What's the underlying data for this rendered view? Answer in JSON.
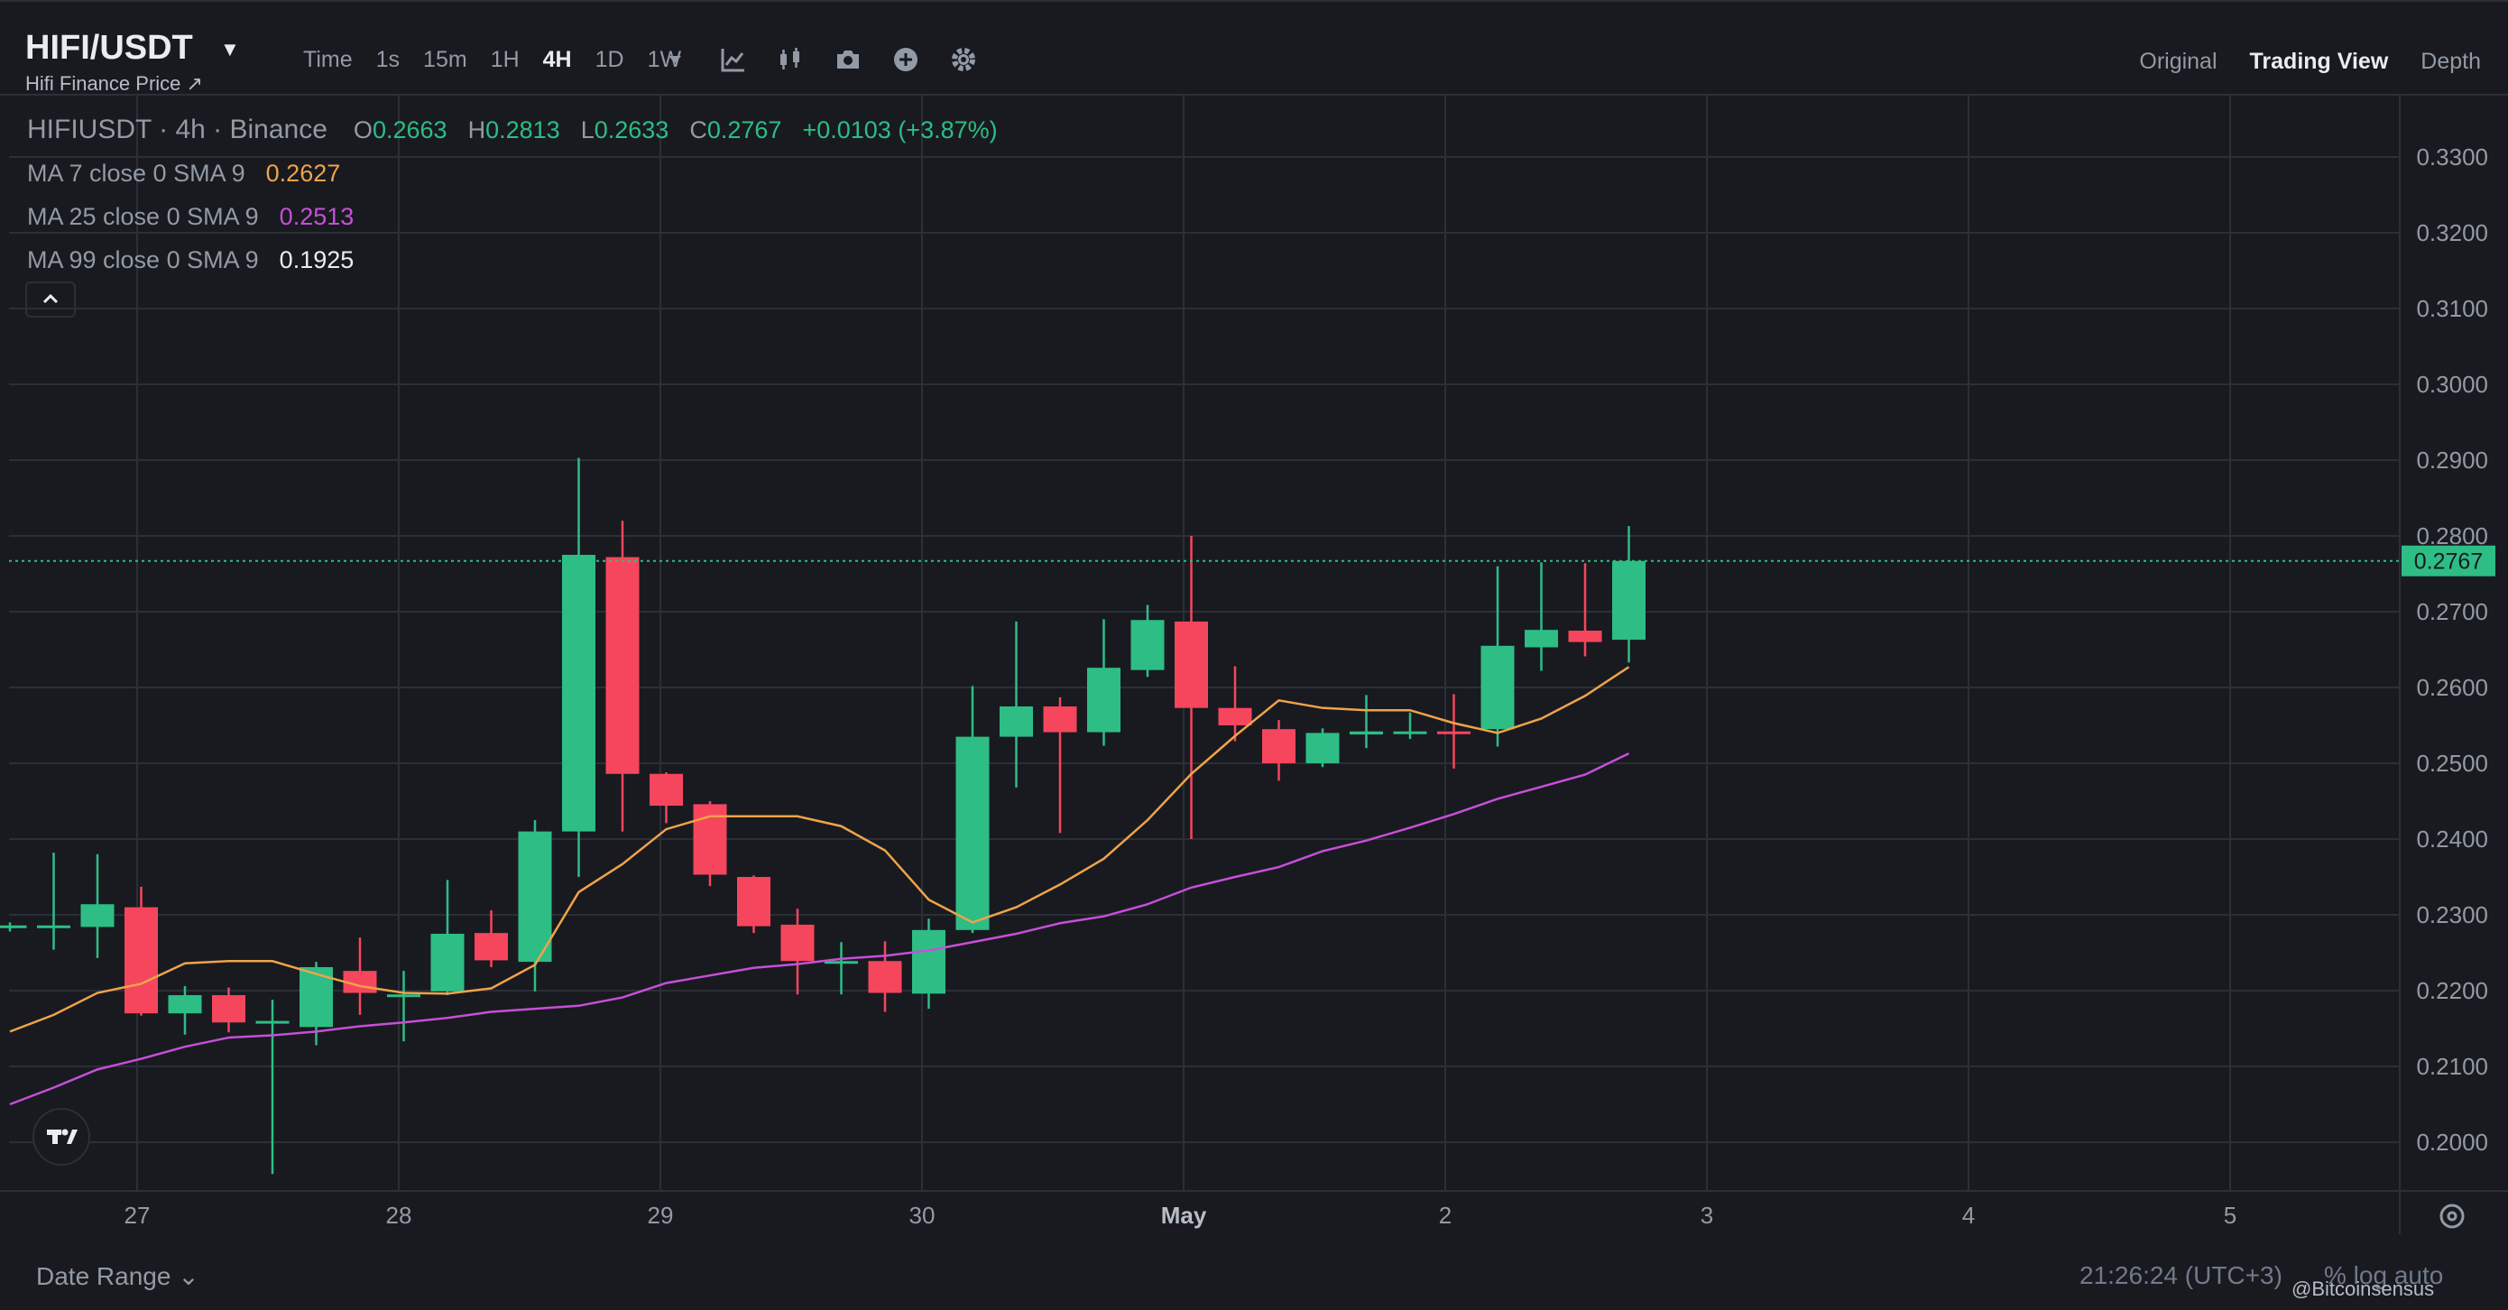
{
  "header": {
    "symbol": "HIFI/USDT",
    "subtitle": "Hifi Finance Price ↗",
    "intervals": [
      "Time",
      "1s",
      "15m",
      "1H",
      "4H",
      "1D",
      "1W"
    ],
    "active_interval": "4H",
    "views": [
      "Original",
      "Trading View",
      "Depth"
    ],
    "active_view": "Trading View"
  },
  "legend": {
    "title": "HIFIUSDT · 4h · Binance",
    "o_label": "O",
    "open": "0.2663",
    "h_label": "H",
    "high": "0.2813",
    "l_label": "L",
    "low": "0.2633",
    "c_label": "C",
    "close": "0.2767",
    "change": "+0.0103 (+3.87%)",
    "ma7_label": "MA 7 close 0 SMA 9",
    "ma7_value": "0.2627",
    "ma7_color": "#f0a34a",
    "ma25_label": "MA 25 close 0 SMA 9",
    "ma25_value": "0.2513",
    "ma25_color": "#c74fd8",
    "ma99_label": "MA 99 close 0 SMA 9",
    "ma99_value": "0.1925",
    "ma99_color": "#eaecef"
  },
  "colors": {
    "up": "#2ebd85",
    "down": "#f6465d",
    "grid": "#2b2f36",
    "axis_text": "#929aa5"
  },
  "chart_data": {
    "type": "candlestick",
    "y_range": [
      0.194,
      0.3372
    ],
    "y_ticks": [
      "0.3300",
      "0.3200",
      "0.3100",
      "0.3000",
      "0.2900",
      "0.2800",
      "0.2700",
      "0.2600",
      "0.2500",
      "0.2400",
      "0.2300",
      "0.2200",
      "0.2100",
      "0.2000"
    ],
    "x_labels": [
      "27",
      "28",
      "29",
      "30",
      "May",
      "2",
      "3",
      "4",
      "5"
    ],
    "last_price": "0.2767",
    "candles": [
      {
        "o": 0.2284,
        "h": 0.229,
        "l": 0.2278,
        "c": 0.2286
      },
      {
        "o": 0.2286,
        "h": 0.2382,
        "l": 0.2254,
        "c": 0.2286
      },
      {
        "o": 0.2284,
        "h": 0.238,
        "l": 0.2243,
        "c": 0.2314
      },
      {
        "o": 0.231,
        "h": 0.2337,
        "l": 0.2167,
        "c": 0.217
      },
      {
        "o": 0.217,
        "h": 0.2206,
        "l": 0.2142,
        "c": 0.2194
      },
      {
        "o": 0.2194,
        "h": 0.2204,
        "l": 0.2145,
        "c": 0.2158
      },
      {
        "o": 0.216,
        "h": 0.2188,
        "l": 0.1958,
        "c": 0.216
      },
      {
        "o": 0.2152,
        "h": 0.2238,
        "l": 0.2128,
        "c": 0.2231
      },
      {
        "o": 0.2226,
        "h": 0.227,
        "l": 0.2168,
        "c": 0.2197
      },
      {
        "o": 0.2194,
        "h": 0.2226,
        "l": 0.2133,
        "c": 0.2195
      },
      {
        "o": 0.2199,
        "h": 0.2346,
        "l": 0.2194,
        "c": 0.2275
      },
      {
        "o": 0.2276,
        "h": 0.2306,
        "l": 0.2231,
        "c": 0.224
      },
      {
        "o": 0.2238,
        "h": 0.2425,
        "l": 0.2199,
        "c": 0.241
      },
      {
        "o": 0.241,
        "h": 0.2903,
        "l": 0.235,
        "c": 0.2775
      },
      {
        "o": 0.2772,
        "h": 0.282,
        "l": 0.241,
        "c": 0.2486
      },
      {
        "o": 0.2486,
        "h": 0.2488,
        "l": 0.2421,
        "c": 0.2444
      },
      {
        "o": 0.2446,
        "h": 0.245,
        "l": 0.2338,
        "c": 0.2353
      },
      {
        "o": 0.235,
        "h": 0.2352,
        "l": 0.2276,
        "c": 0.2285
      },
      {
        "o": 0.2287,
        "h": 0.2308,
        "l": 0.2195,
        "c": 0.2239
      },
      {
        "o": 0.2239,
        "h": 0.2264,
        "l": 0.2195,
        "c": 0.2239
      },
      {
        "o": 0.2239,
        "h": 0.2265,
        "l": 0.2172,
        "c": 0.2197
      },
      {
        "o": 0.2196,
        "h": 0.2295,
        "l": 0.2176,
        "c": 0.228
      },
      {
        "o": 0.228,
        "h": 0.2602,
        "l": 0.2276,
        "c": 0.2535
      },
      {
        "o": 0.2535,
        "h": 0.2687,
        "l": 0.2468,
        "c": 0.2575
      },
      {
        "o": 0.2575,
        "h": 0.2587,
        "l": 0.2408,
        "c": 0.2541
      },
      {
        "o": 0.2541,
        "h": 0.269,
        "l": 0.2523,
        "c": 0.2626
      },
      {
        "o": 0.2623,
        "h": 0.2709,
        "l": 0.2614,
        "c": 0.2689
      },
      {
        "o": 0.2687,
        "h": 0.28,
        "l": 0.24,
        "c": 0.2573
      },
      {
        "o": 0.2573,
        "h": 0.2628,
        "l": 0.2529,
        "c": 0.255
      },
      {
        "o": 0.2545,
        "h": 0.2557,
        "l": 0.2477,
        "c": 0.25
      },
      {
        "o": 0.25,
        "h": 0.2546,
        "l": 0.2495,
        "c": 0.254
      },
      {
        "o": 0.2538,
        "h": 0.259,
        "l": 0.252,
        "c": 0.2542
      },
      {
        "o": 0.254,
        "h": 0.2567,
        "l": 0.2532,
        "c": 0.2542
      },
      {
        "o": 0.2542,
        "h": 0.2591,
        "l": 0.2493,
        "c": 0.254
      },
      {
        "o": 0.2545,
        "h": 0.276,
        "l": 0.2522,
        "c": 0.2655
      },
      {
        "o": 0.2653,
        "h": 0.2765,
        "l": 0.2622,
        "c": 0.2676
      },
      {
        "o": 0.2675,
        "h": 0.2764,
        "l": 0.2641,
        "c": 0.266
      },
      {
        "o": 0.2663,
        "h": 0.2813,
        "l": 0.2633,
        "c": 0.2767
      }
    ],
    "ma7": [
      0.2146,
      0.2168,
      0.2197,
      0.2209,
      0.2236,
      0.2239,
      0.2239,
      0.2222,
      0.2206,
      0.2197,
      0.2196,
      0.2203,
      0.2234,
      0.233,
      0.2367,
      0.2413,
      0.243,
      0.243,
      0.243,
      0.2417,
      0.2385,
      0.232,
      0.229,
      0.231,
      0.234,
      0.2374,
      0.2425,
      0.2486,
      0.2536,
      0.2583,
      0.2573,
      0.257,
      0.257,
      0.2553,
      0.254,
      0.2559,
      0.2589,
      0.2627
    ],
    "ma25": [
      0.205,
      0.2072,
      0.2096,
      0.211,
      0.2126,
      0.2138,
      0.2141,
      0.2146,
      0.2153,
      0.2158,
      0.2164,
      0.2172,
      0.2176,
      0.218,
      0.2191,
      0.221,
      0.222,
      0.223,
      0.2235,
      0.2242,
      0.2246,
      0.2253,
      0.2264,
      0.2275,
      0.2289,
      0.2298,
      0.2314,
      0.2336,
      0.235,
      0.2363,
      0.2384,
      0.2398,
      0.2415,
      0.2433,
      0.2453,
      0.2469,
      0.2485,
      0.2513
    ]
  },
  "footer": {
    "date_range": "Date Range",
    "clock": "21:26:24 (UTC+3)",
    "scale_options": "%   log   auto",
    "watermark": "@Bitcoinsensus"
  }
}
